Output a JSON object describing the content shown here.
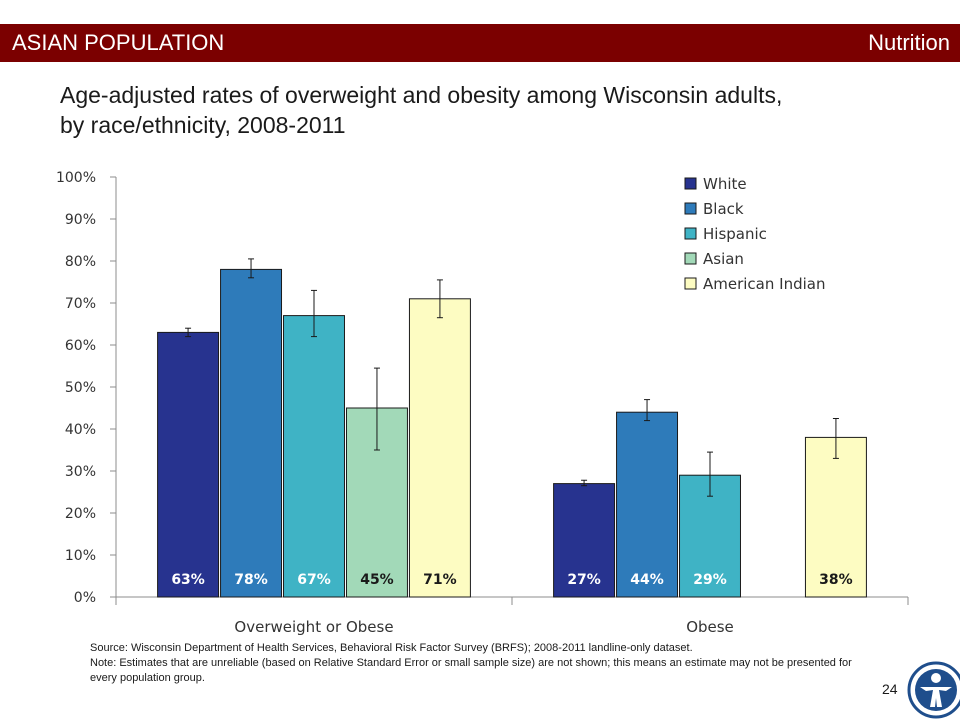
{
  "header": {
    "section": "ASIAN POPULATION",
    "topic": "Nutrition"
  },
  "page_title": {
    "line1": "Age-adjusted rates of overweight and obesity among Wisconsin adults,",
    "line2": "by race/ethnicity, 2008-2011"
  },
  "footnote": {
    "source": "Source: Wisconsin Department of Health Services, Behavioral Risk Factor Survey (BRFS); 2008-2011 landline-only dataset.",
    "note": "Note: Estimates that are unreliable (based on Relative Standard Error or small sample size) are not shown; this means an estimate may not be presented for every population group."
  },
  "page_number": "24",
  "colors": {
    "banner": "#7b0000"
  },
  "chart_data": {
    "type": "bar",
    "title": "",
    "xlabel": "",
    "ylabel": "",
    "ylim": [
      0,
      100
    ],
    "y_ticks": [
      "0%",
      "10%",
      "20%",
      "30%",
      "40%",
      "50%",
      "60%",
      "70%",
      "80%",
      "90%",
      "100%"
    ],
    "categories": [
      "Overweight or Obese",
      "Obese"
    ],
    "legend_position": "top-right",
    "grid": false,
    "series": [
      {
        "name": "White",
        "color": "#27338f",
        "values": [
          63,
          27
        ],
        "labels": [
          "63%",
          "27%"
        ],
        "error": [
          [
            62,
            64
          ],
          [
            26.5,
            27.8
          ]
        ]
      },
      {
        "name": "Black",
        "color": "#2e7bba",
        "values": [
          78,
          44
        ],
        "labels": [
          "78%",
          "44%"
        ],
        "error": [
          [
            76,
            80.5
          ],
          [
            42,
            47
          ]
        ]
      },
      {
        "name": "Hispanic",
        "color": "#3fb3c5",
        "values": [
          67,
          29
        ],
        "labels": [
          "67%",
          "29%"
        ],
        "error": [
          [
            62,
            73
          ],
          [
            24,
            34.5
          ]
        ]
      },
      {
        "name": "Asian",
        "color": "#a2d9b8",
        "values": [
          45,
          null
        ],
        "labels": [
          "45%",
          ""
        ],
        "error": [
          [
            35,
            54.5
          ],
          null
        ]
      },
      {
        "name": "American Indian",
        "color": "#fdfcc2",
        "values": [
          71,
          38
        ],
        "labels": [
          "71%",
          "38%"
        ],
        "error": [
          [
            66.5,
            75.5
          ],
          [
            33,
            42.5
          ]
        ]
      }
    ]
  }
}
